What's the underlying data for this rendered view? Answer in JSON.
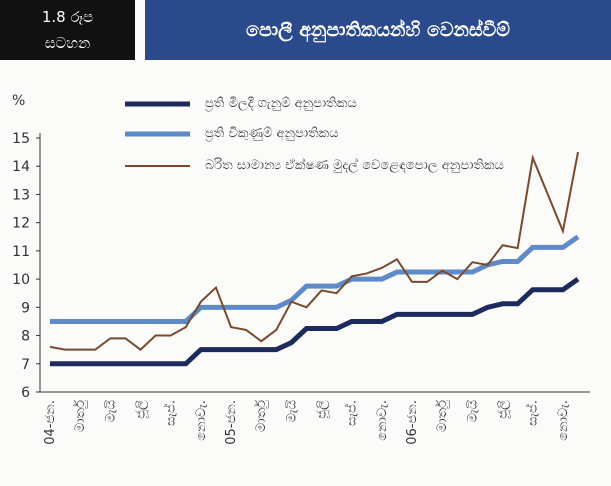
{
  "header": {
    "figure": "1.8 රූප",
    "figure_sub": "සටහන",
    "title": "පොලී අනුපාතිකයන්හි වෙනස්වීම්"
  },
  "chart_data": {
    "type": "line",
    "y_label": "%",
    "categories": [
      "04-ජන.",
      null,
      "මාර්තු",
      null,
      "මැයි",
      null,
      "ජූලි",
      null,
      "සැප්.",
      null,
      "නොවැ.",
      null,
      "05-ජන.",
      null,
      "මාර්තු",
      null,
      "මැයි",
      null,
      "ජූලි",
      null,
      "සැප්.",
      null,
      "නොවැ.",
      null,
      "06-ජන.",
      null,
      "මාර්තු",
      null,
      "මැයි",
      null,
      "ජූලි",
      null,
      "සැප්.",
      null,
      "නොවැ.",
      null
    ],
    "series": [
      {
        "name": "ප්‍රති මිලදී ගැනුම් අනුපාතිකය",
        "color": "#1c2a5e",
        "width": 5,
        "values": [
          7.0,
          7.0,
          7.0,
          7.0,
          7.0,
          7.0,
          7.0,
          7.0,
          7.0,
          7.0,
          7.5,
          7.5,
          7.5,
          7.5,
          7.5,
          7.5,
          7.75,
          8.25,
          8.25,
          8.25,
          8.5,
          8.5,
          8.5,
          8.75,
          8.75,
          8.75,
          8.75,
          8.75,
          8.75,
          9.0,
          9.125,
          9.125,
          9.625,
          9.625,
          9.625,
          10.0
        ]
      },
      {
        "name": "ප්‍රති විකුණුම් අනුපාතිකය",
        "color": "#5f8ac8",
        "width": 5,
        "values": [
          8.5,
          8.5,
          8.5,
          8.5,
          8.5,
          8.5,
          8.5,
          8.5,
          8.5,
          8.5,
          9.0,
          9.0,
          9.0,
          9.0,
          9.0,
          9.0,
          9.25,
          9.75,
          9.75,
          9.75,
          10.0,
          10.0,
          10.0,
          10.25,
          10.25,
          10.25,
          10.25,
          10.25,
          10.25,
          10.5,
          10.625,
          10.625,
          11.125,
          11.125,
          11.125,
          11.5
        ]
      },
      {
        "name": "බරිත සාමාන්‍ය ඒක්ෂණ මුදල් වෙළෙඳපොල අනුපාතිකය",
        "color": "#7a4a2e",
        "width": 2,
        "values": [
          7.6,
          7.5,
          7.5,
          7.5,
          7.9,
          7.9,
          7.5,
          8.0,
          8.0,
          8.3,
          9.2,
          9.7,
          8.3,
          8.2,
          7.8,
          8.2,
          9.2,
          9.0,
          9.6,
          9.5,
          10.1,
          10.2,
          10.4,
          10.7,
          9.9,
          9.9,
          10.3,
          10.0,
          10.6,
          10.5,
          11.2,
          11.1,
          14.3,
          13.0,
          11.7,
          14.5
        ]
      }
    ],
    "ylim": [
      6,
      15
    ],
    "yticks": [
      6,
      7,
      8,
      9,
      10,
      11,
      12,
      13,
      14,
      15
    ]
  }
}
